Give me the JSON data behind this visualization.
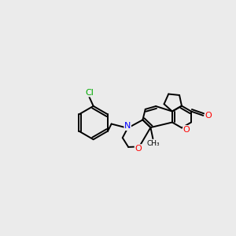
{
  "background_color": "#ebebeb",
  "bond_color": "#000000",
  "atom_colors": {
    "N": "#0000ff",
    "O": "#ff0000",
    "Cl": "#00aa00",
    "C": "#000000"
  },
  "figsize": [
    3.0,
    3.0
  ],
  "dpi": 100,
  "xlim": [
    0,
    10
  ],
  "ylim": [
    0,
    10
  ]
}
